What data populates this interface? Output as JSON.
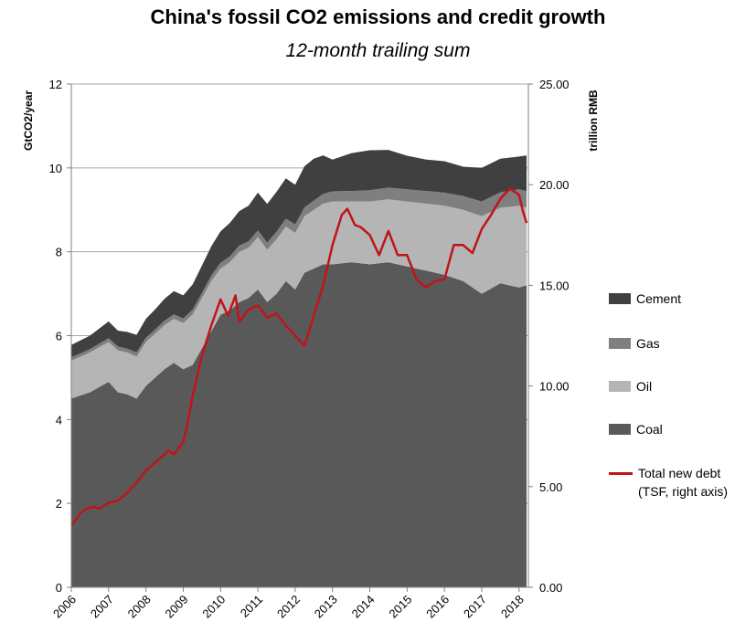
{
  "chart_data": {
    "type": "area",
    "title": "China's fossil CO2 emissions and credit growth",
    "subtitle": "12-month trailing sum",
    "ylabel": "GtCO2/year",
    "y2label": "trillion RMB",
    "ylim": [
      0,
      12
    ],
    "y2lim": [
      0,
      25
    ],
    "xlim": [
      2006,
      2018.25
    ],
    "yticks": [
      "0",
      "2",
      "4",
      "6",
      "8",
      "10",
      "12"
    ],
    "y2ticks": [
      "0.00",
      "5.00",
      "10.00",
      "15.00",
      "20.00",
      "25.00"
    ],
    "xticks": [
      "2006",
      "2007",
      "2008",
      "2009",
      "2010",
      "2011",
      "2012",
      "2013",
      "2014",
      "2015",
      "2016",
      "2017",
      "2018"
    ],
    "grid": true,
    "legend_position": "right",
    "x": [
      2006.0,
      2006.5,
      2007.0,
      2007.25,
      2007.5,
      2007.75,
      2008.0,
      2008.25,
      2008.5,
      2008.75,
      2009.0,
      2009.25,
      2009.5,
      2009.75,
      2010.0,
      2010.25,
      2010.5,
      2010.75,
      2011.0,
      2011.25,
      2011.5,
      2011.75,
      2012.0,
      2012.25,
      2012.5,
      2012.75,
      2013.0,
      2013.5,
      2014.0,
      2014.5,
      2015.0,
      2015.5,
      2016.0,
      2016.5,
      2017.0,
      2017.5,
      2018.0,
      2018.2
    ],
    "series": [
      {
        "name": "Coal",
        "color": "#595959",
        "values": [
          4.5,
          4.65,
          4.9,
          4.65,
          4.6,
          4.5,
          4.8,
          5.0,
          5.2,
          5.35,
          5.2,
          5.3,
          5.7,
          6.1,
          6.5,
          6.6,
          6.8,
          6.9,
          7.1,
          6.8,
          7.0,
          7.3,
          7.1,
          7.5,
          7.6,
          7.7,
          7.7,
          7.75,
          7.7,
          7.75,
          7.65,
          7.55,
          7.45,
          7.3,
          7.0,
          7.25,
          7.15,
          7.2
        ]
      },
      {
        "name": "Oil",
        "color": "#b5b5b5",
        "values": [
          0.9,
          0.95,
          0.95,
          1.0,
          1.0,
          1.0,
          1.05,
          1.05,
          1.05,
          1.05,
          1.1,
          1.2,
          1.2,
          1.2,
          1.1,
          1.15,
          1.2,
          1.2,
          1.25,
          1.25,
          1.3,
          1.3,
          1.35,
          1.35,
          1.4,
          1.45,
          1.5,
          1.45,
          1.5,
          1.5,
          1.55,
          1.6,
          1.65,
          1.7,
          1.85,
          1.8,
          1.95,
          1.85
        ]
      },
      {
        "name": "Gas",
        "color": "#7f7f7f",
        "values": [
          0.08,
          0.08,
          0.09,
          0.09,
          0.09,
          0.1,
          0.1,
          0.1,
          0.11,
          0.11,
          0.11,
          0.12,
          0.12,
          0.13,
          0.14,
          0.14,
          0.15,
          0.15,
          0.16,
          0.17,
          0.18,
          0.19,
          0.2,
          0.21,
          0.22,
          0.23,
          0.24,
          0.25,
          0.27,
          0.28,
          0.29,
          0.3,
          0.31,
          0.33,
          0.35,
          0.37,
          0.39,
          0.4
        ]
      },
      {
        "name": "Cement",
        "color": "#404040",
        "values": [
          0.3,
          0.32,
          0.4,
          0.38,
          0.4,
          0.42,
          0.45,
          0.48,
          0.52,
          0.55,
          0.55,
          0.6,
          0.65,
          0.7,
          0.75,
          0.8,
          0.82,
          0.85,
          0.9,
          0.92,
          0.95,
          0.96,
          0.95,
          0.98,
          1.0,
          0.92,
          0.76,
          0.9,
          0.95,
          0.9,
          0.8,
          0.75,
          0.75,
          0.7,
          0.8,
          0.8,
          0.78,
          0.85
        ]
      },
      {
        "name": "Total new debt\n(TSF, right axis)",
        "color": "#c0141b",
        "type": "line",
        "axis": "right",
        "x": [
          2006.0,
          2006.1,
          2006.25,
          2006.4,
          2006.6,
          2006.75,
          2007.0,
          2007.25,
          2007.5,
          2007.75,
          2008.0,
          2008.25,
          2008.5,
          2008.6,
          2008.75,
          2009.0,
          2009.1,
          2009.25,
          2009.5,
          2009.75,
          2010.0,
          2010.2,
          2010.4,
          2010.5,
          2010.75,
          2011.0,
          2011.25,
          2011.5,
          2011.75,
          2012.0,
          2012.25,
          2012.5,
          2012.75,
          2013.0,
          2013.25,
          2013.4,
          2013.6,
          2013.75,
          2014.0,
          2014.25,
          2014.5,
          2014.75,
          2015.0,
          2015.25,
          2015.5,
          2015.75,
          2016.0,
          2016.25,
          2016.5,
          2016.75,
          2017.0,
          2017.25,
          2017.5,
          2017.75,
          2018.0,
          2018.1,
          2018.2
        ],
        "values": [
          3.1,
          3.3,
          3.7,
          3.9,
          4.0,
          3.9,
          4.2,
          4.3,
          4.7,
          5.2,
          5.8,
          6.2,
          6.6,
          6.8,
          6.6,
          7.2,
          8.0,
          9.5,
          11.5,
          13.0,
          14.3,
          13.5,
          14.5,
          13.2,
          13.8,
          14.0,
          13.4,
          13.6,
          13.0,
          12.5,
          12.0,
          13.5,
          15.0,
          17.0,
          18.5,
          18.8,
          18.0,
          17.9,
          17.5,
          16.5,
          17.7,
          16.5,
          16.5,
          15.3,
          14.9,
          15.2,
          15.3,
          17.0,
          17.0,
          16.6,
          17.8,
          18.5,
          19.3,
          19.8,
          19.5,
          18.7,
          18.1
        ]
      }
    ]
  }
}
